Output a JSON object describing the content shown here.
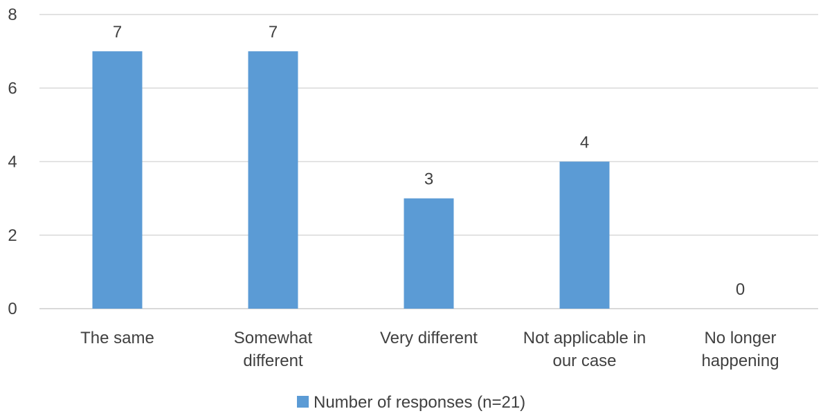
{
  "chart_data": {
    "type": "bar",
    "categories": [
      [
        "The same"
      ],
      [
        "Somewhat",
        "different"
      ],
      [
        "Very different"
      ],
      [
        "Not applicable in",
        "our case"
      ],
      [
        "No longer",
        "happening"
      ]
    ],
    "series": [
      {
        "name": "Number of responses (n=21)",
        "values": [
          7,
          7,
          3,
          4,
          0
        ],
        "color": "#5b9bd5"
      }
    ],
    "ylim": [
      0,
      8
    ],
    "yticks": [
      0,
      2,
      4,
      6,
      8
    ],
    "grid": true,
    "legend": "bottom",
    "data_labels": true
  }
}
